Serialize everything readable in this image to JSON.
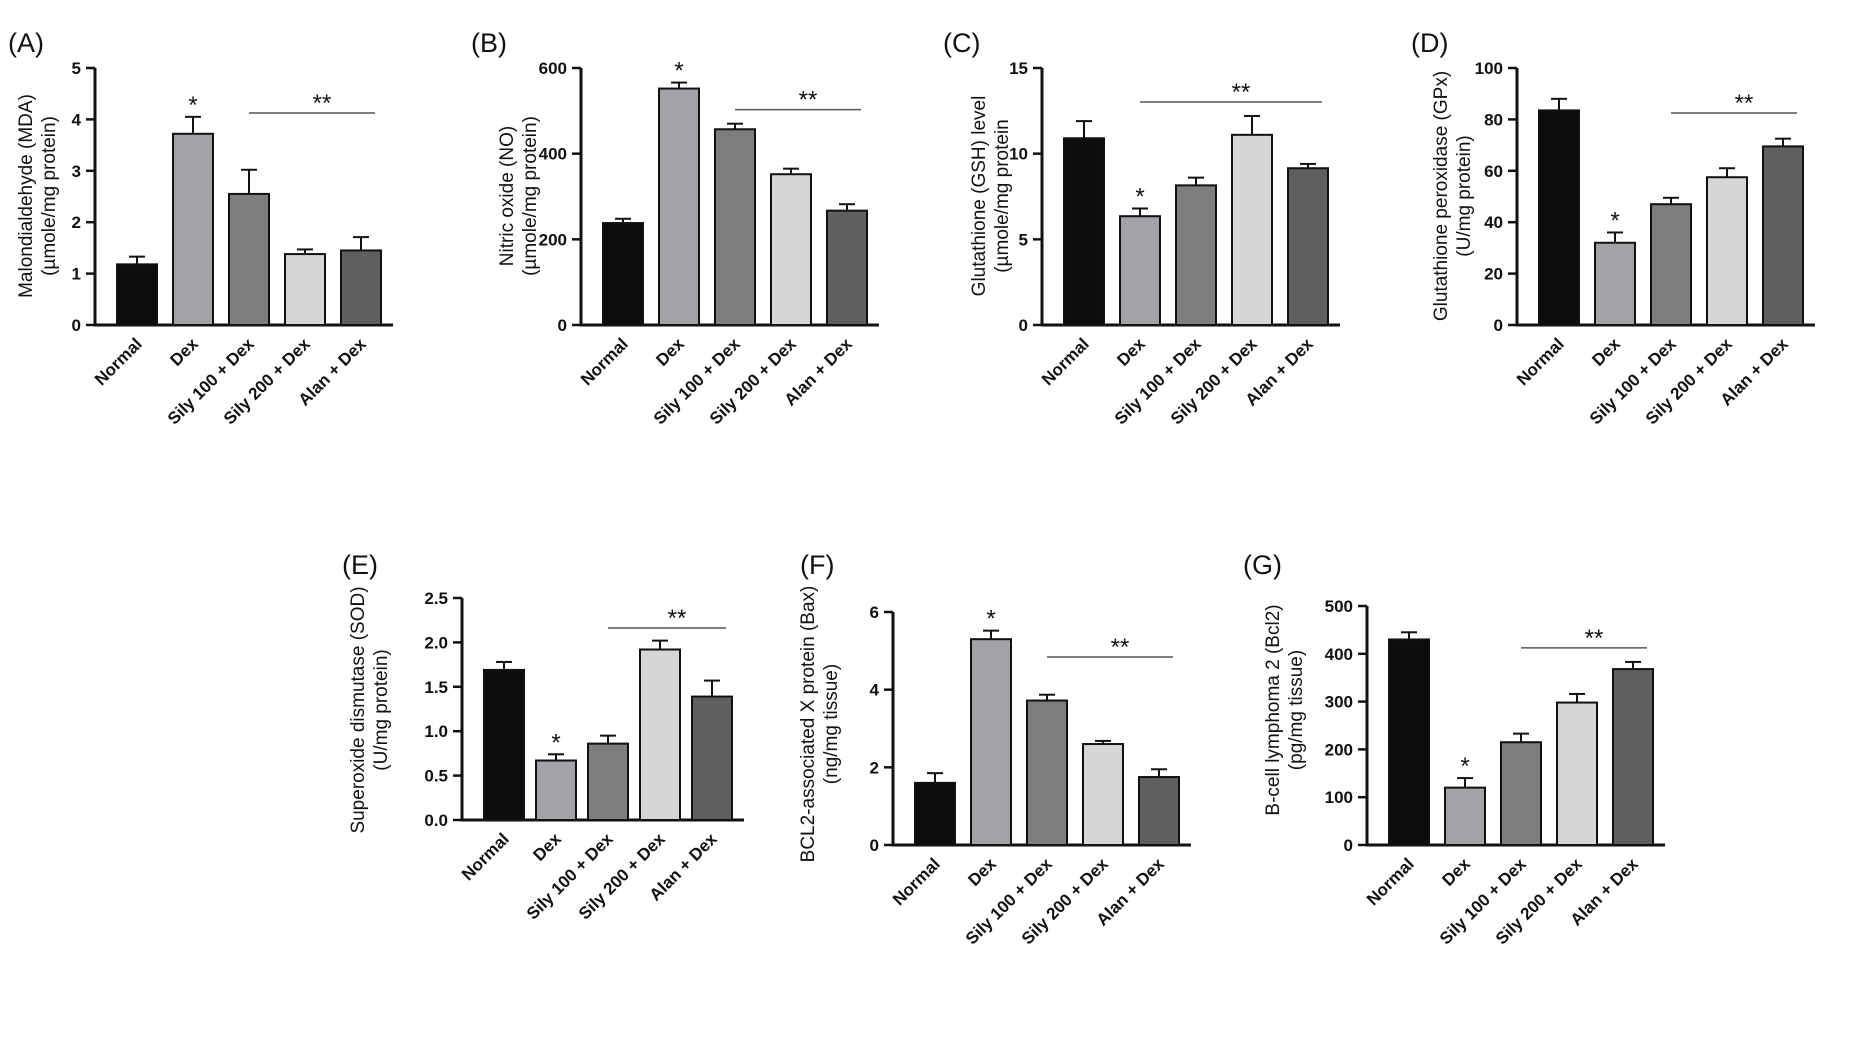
{
  "shared": {
    "categories": [
      "Normal",
      "Dex",
      "Sily 100 + Dex",
      "Sily 200 + Dex",
      "Alan + Dex"
    ],
    "colors": [
      "#0d0d0d",
      "#a3a3a7",
      "#7d7d7f",
      "#d6d6d6",
      "#5f5f5f"
    ]
  },
  "chart_data": [
    {
      "type": "bar",
      "panel": "(A)",
      "ylabel_line1": "Malondialdehyde (MDA)",
      "ylabel_line2": "(µmole/mg protein)",
      "ylim": [
        0,
        5
      ],
      "yticks": [
        0,
        1,
        2,
        3,
        4,
        5
      ],
      "tick_labels": [
        "0",
        "1",
        "2",
        "3",
        "4",
        "5"
      ],
      "values": [
        1.18,
        3.72,
        2.55,
        1.38,
        1.45
      ],
      "errors": [
        0.15,
        0.33,
        0.47,
        0.09,
        0.26
      ],
      "single_mark": "*",
      "single_index": 1,
      "group_mark": "**",
      "group_from": 2,
      "group_to": 4
    },
    {
      "type": "bar",
      "panel": "(B)",
      "ylabel_line1": "Nitric oxide (NO)",
      "ylabel_line2": "(µmole/mg protein)",
      "ylim": [
        0,
        600
      ],
      "yticks": [
        0,
        200,
        400,
        600
      ],
      "tick_labels": [
        "0",
        "200",
        "400",
        "600"
      ],
      "values": [
        238,
        552,
        457,
        352,
        267
      ],
      "errors": [
        10,
        14,
        13,
        13,
        15
      ],
      "single_mark": "*",
      "single_index": 1,
      "group_mark": "**",
      "group_from": 2,
      "group_to": 4
    },
    {
      "type": "bar",
      "panel": "(C)",
      "ylabel_line1": "Glutathione (GSH) level",
      "ylabel_line2": "(µmole/mg protein",
      "ylim": [
        0,
        15
      ],
      "yticks": [
        0,
        5,
        10,
        15
      ],
      "tick_labels": [
        "0",
        "5",
        "10",
        "15"
      ],
      "values": [
        10.9,
        6.35,
        8.15,
        11.1,
        9.15
      ],
      "errors": [
        1.0,
        0.45,
        0.45,
        1.1,
        0.25
      ],
      "single_mark": "*",
      "single_index": 1,
      "group_mark": "**",
      "group_from": 1,
      "group_to": 4
    },
    {
      "type": "bar",
      "panel": "(D)",
      "ylabel_line1": "Glutathione peroxidase (GPx)",
      "ylabel_line2": "(U/mg protein)",
      "ylim": [
        0,
        100
      ],
      "yticks": [
        0,
        20,
        40,
        60,
        80,
        100
      ],
      "tick_labels": [
        "0",
        "20",
        "40",
        "60",
        "80",
        "100"
      ],
      "values": [
        83.5,
        32,
        47,
        57.5,
        69.5
      ],
      "errors": [
        4.5,
        4,
        2.5,
        3.5,
        3
      ],
      "single_mark": "*",
      "single_index": 1,
      "group_mark": "**",
      "group_from": 2,
      "group_to": 4
    },
    {
      "type": "bar",
      "panel": "(E)",
      "ylabel_line1": "Superoxide dismutase (SOD)",
      "ylabel_line2": "(U/mg protein)",
      "ylim": [
        0,
        2.5
      ],
      "yticks": [
        0,
        0.5,
        1.0,
        1.5,
        2.0,
        2.5
      ],
      "tick_labels": [
        "0.0",
        "0.5",
        "1.0",
        "1.5",
        "2.0",
        "2.5"
      ],
      "values": [
        1.69,
        0.67,
        0.86,
        1.92,
        1.39
      ],
      "errors": [
        0.09,
        0.07,
        0.09,
        0.1,
        0.18
      ],
      "single_mark": "*",
      "single_index": 1,
      "group_mark": "**",
      "group_from": 2,
      "group_to": 4
    },
    {
      "type": "bar",
      "panel": "(F)",
      "ylabel_line1": "BCL2-associated X protein (Bax)",
      "ylabel_line2": "(ng/mg tissue)",
      "ylim": [
        0,
        6
      ],
      "yticks": [
        0,
        2,
        4,
        6
      ],
      "tick_labels": [
        "0",
        "2",
        "4",
        "6"
      ],
      "values": [
        1.6,
        5.3,
        3.72,
        2.6,
        1.75
      ],
      "errors": [
        0.25,
        0.22,
        0.15,
        0.08,
        0.2
      ],
      "single_mark": "*",
      "single_index": 1,
      "group_mark": "**",
      "group_from": 2,
      "group_to": 4
    },
    {
      "type": "bar",
      "panel": "(G)",
      "ylabel_line1": "B-cell lymphoma 2 (Bcl2)",
      "ylabel_line2": "(pg/mg tissue)",
      "ylim": [
        0,
        500
      ],
      "yticks": [
        0,
        100,
        200,
        300,
        400,
        500
      ],
      "tick_labels": [
        "0",
        "100",
        "200",
        "300",
        "400",
        "500"
      ],
      "values": [
        430,
        120,
        215,
        298,
        368
      ],
      "errors": [
        15,
        20,
        18,
        18,
        15
      ],
      "single_mark": "*",
      "single_index": 1,
      "group_mark": "**",
      "group_from": 2,
      "group_to": 4
    }
  ]
}
